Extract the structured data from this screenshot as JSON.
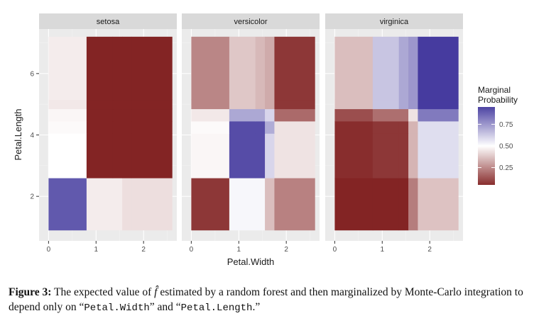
{
  "chart_data": {
    "type": "heatmap",
    "xlabel": "Petal.Width",
    "ylabel": "Petal.Length",
    "xlim": [
      -0.2,
      2.7
    ],
    "ylim": [
      0.55,
      7.45
    ],
    "xticks": [
      0,
      1,
      2
    ],
    "yticks": [
      2,
      4,
      6
    ],
    "legend": {
      "title": [
        "Marginal",
        "Probability"
      ],
      "ticks": [
        0.25,
        0.5,
        0.75
      ],
      "range": [
        0.05,
        0.95
      ],
      "position": "right",
      "low_color": "#7b1616",
      "mid_color": "#ffffff",
      "high_color": "#3a2f99"
    },
    "x_breaks": [
      0.0,
      0.8,
      1.35,
      1.55,
      1.75,
      2.6
    ],
    "y_breaks": [
      0.9,
      2.6,
      4.05,
      4.45,
      4.85,
      5.15,
      7.2
    ],
    "panels": [
      {
        "name": "setosa",
        "values": [
          [
            0.9,
            0.46,
            0.46,
            0.43,
            0.43
          ],
          [
            0.5,
            0.03,
            0.03,
            0.03,
            0.03
          ],
          [
            0.49,
            0.03,
            0.03,
            0.03,
            0.03
          ],
          [
            0.48,
            0.03,
            0.03,
            0.03,
            0.03
          ],
          [
            0.45,
            0.03,
            0.03,
            0.03,
            0.03
          ],
          [
            0.46,
            0.03,
            0.03,
            0.03,
            0.03
          ]
        ]
      },
      {
        "name": "versicolor",
        "values": [
          [
            0.07,
            0.52,
            0.52,
            0.36,
            0.23
          ],
          [
            0.48,
            0.93,
            0.93,
            0.6,
            0.44
          ],
          [
            0.49,
            0.93,
            0.93,
            0.7,
            0.44
          ],
          [
            0.45,
            0.71,
            0.71,
            0.6,
            0.18
          ],
          [
            0.24,
            0.38,
            0.35,
            0.32,
            0.07
          ],
          [
            0.24,
            0.38,
            0.35,
            0.32,
            0.07
          ]
        ]
      },
      {
        "name": "virginica",
        "values": [
          [
            0.03,
            0.03,
            0.03,
            0.22,
            0.37
          ],
          [
            0.05,
            0.07,
            0.07,
            0.34,
            0.58
          ],
          [
            0.05,
            0.07,
            0.07,
            0.34,
            0.58
          ],
          [
            0.12,
            0.19,
            0.19,
            0.44,
            0.82
          ],
          [
            0.36,
            0.64,
            0.71,
            0.75,
            0.97
          ],
          [
            0.36,
            0.64,
            0.71,
            0.75,
            0.97
          ]
        ]
      }
    ]
  },
  "caption": {
    "label": "Figure 3:",
    "text_a": " The expected value of ",
    "fhat": "f̂",
    "text_b": " estimated by a random forest and then marginalized by Monte-Carlo integration to depend only on “",
    "code_a": "Petal.Width",
    "text_c": "” and “",
    "code_b": "Petal.Length",
    "text_d": ".”"
  }
}
